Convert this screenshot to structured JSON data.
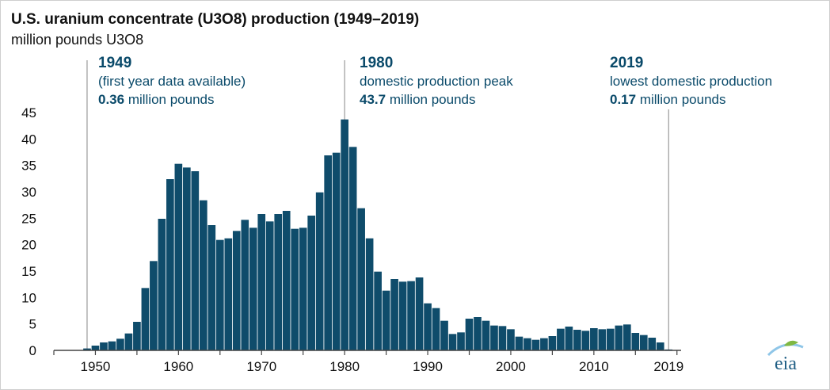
{
  "title": "U.S. uranium concentrate (U3O8) production (1949–2019)",
  "subtitle": "million pounds U3O8",
  "annotations": [
    {
      "year": "1949",
      "line1": "(first year data available)",
      "value": "0.36",
      "unit": " million pounds"
    },
    {
      "year": "1980",
      "line1": "domestic production peak",
      "value": "43.7",
      "unit": " million pounds"
    },
    {
      "year": "2019",
      "line1": "lowest domestic production",
      "value": "0.17",
      "unit": " million pounds"
    }
  ],
  "logo_text": "eia",
  "colors": {
    "bar": "#0f4c6b",
    "text": "#111111",
    "annotation": "#0a4a6a",
    "guide": "#9a9a9a",
    "logo": "#1f5e84",
    "logo_accent": "#8fc6e8",
    "logo_green": "#7fb843"
  },
  "chart_data": {
    "type": "bar",
    "title": "U.S. uranium concentrate (U3O8) production (1949–2019)",
    "ylabel": "million pounds U3O8",
    "xlabel": "",
    "ylim": [
      0,
      45
    ],
    "yticks": [
      0,
      5,
      10,
      15,
      20,
      25,
      30,
      35,
      40,
      45
    ],
    "xticks": [
      1950,
      1960,
      1970,
      1980,
      1990,
      2000,
      2010,
      2019
    ],
    "grid": false,
    "series": [
      {
        "name": "U.S. uranium concentrate production",
        "x": [
          1949,
          1950,
          1951,
          1952,
          1953,
          1954,
          1955,
          1956,
          1957,
          1958,
          1959,
          1960,
          1961,
          1962,
          1963,
          1964,
          1965,
          1966,
          1967,
          1968,
          1969,
          1970,
          1971,
          1972,
          1973,
          1974,
          1975,
          1976,
          1977,
          1978,
          1979,
          1980,
          1981,
          1982,
          1983,
          1984,
          1985,
          1986,
          1987,
          1988,
          1989,
          1990,
          1991,
          1992,
          1993,
          1994,
          1995,
          1996,
          1997,
          1998,
          1999,
          2000,
          2001,
          2002,
          2003,
          2004,
          2005,
          2006,
          2007,
          2008,
          2009,
          2010,
          2011,
          2012,
          2013,
          2014,
          2015,
          2016,
          2017,
          2018,
          2019
        ],
        "values": [
          0.36,
          0.9,
          1.5,
          1.7,
          2.2,
          3.2,
          5.4,
          11.8,
          16.9,
          24.9,
          32.4,
          35.3,
          34.6,
          33.9,
          28.4,
          23.7,
          20.9,
          21.2,
          22.6,
          24.7,
          23.2,
          25.8,
          24.4,
          25.8,
          26.4,
          23.0,
          23.2,
          25.5,
          29.9,
          36.9,
          37.4,
          43.7,
          38.5,
          26.9,
          21.2,
          14.9,
          11.3,
          13.5,
          13.0,
          13.1,
          13.8,
          8.9,
          8.0,
          5.6,
          3.1,
          3.4,
          6.0,
          6.3,
          5.6,
          4.7,
          4.6,
          4.0,
          2.6,
          2.3,
          2.0,
          2.3,
          2.7,
          4.1,
          4.5,
          3.9,
          3.7,
          4.2,
          4.0,
          4.1,
          4.7,
          4.9,
          3.3,
          2.9,
          2.4,
          1.5,
          0.17
        ]
      }
    ]
  }
}
